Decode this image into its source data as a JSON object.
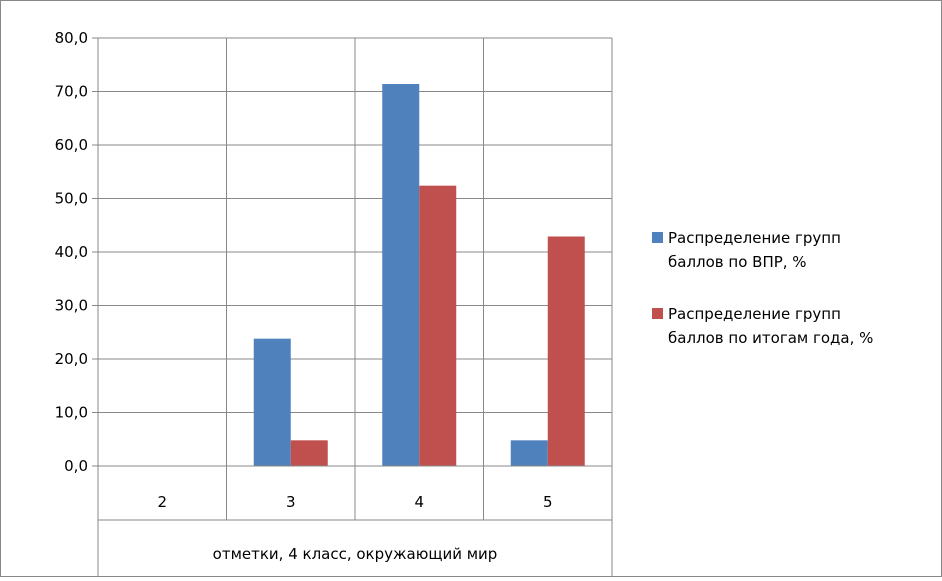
{
  "chart_data": {
    "type": "bar",
    "categories": [
      "2",
      "3",
      "4",
      "5"
    ],
    "series": [
      {
        "name": "Распределение групп баллов по ВПР, %",
        "values": [
          0.0,
          23.8,
          71.4,
          4.8
        ],
        "color": "#4F81BD"
      },
      {
        "name": "Распределение групп баллов по итогам года, %",
        "values": [
          0.0,
          4.8,
          52.4,
          42.9
        ],
        "color": "#C0504D"
      }
    ],
    "y_ticks": [
      "0,0",
      "10,0",
      "20,0",
      "30,0",
      "40,0",
      "50,0",
      "60,0",
      "70,0",
      "80,0"
    ],
    "ylim": [
      0,
      80
    ],
    "xlabel": "отметки, 4 класс, окружающий мир",
    "ylabel": "",
    "title": "",
    "grid": true,
    "legend_position": "right"
  },
  "legend": {
    "items": [
      {
        "lines": [
          "Распределение групп",
          "баллов по ВПР, %"
        ]
      },
      {
        "lines": [
          "Распределение групп",
          "баллов по итогам года, %"
        ]
      }
    ]
  }
}
